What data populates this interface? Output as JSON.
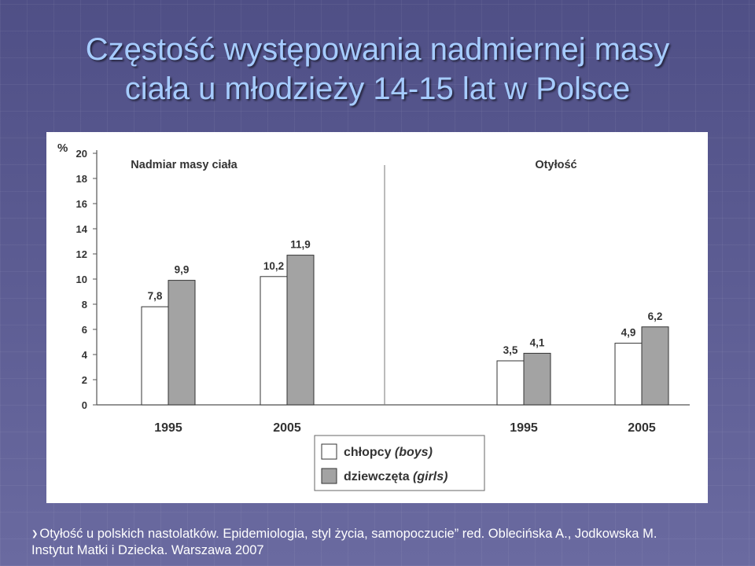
{
  "slide": {
    "title_line1": "Częstość występowania nadmiernej masy",
    "title_line2": "ciała u młodzieży 14-15 lat w Polsce",
    "footer_line1": "Otyłość u polskich nastolatków. Epidemiologia, styl życia, samopoczucie” red. Oblecińska A., Jodkowska M.",
    "footer_line2": "Instytut Matki i Dziecka. Warszawa 2007",
    "bullet_icon": "arrow-bullet-icon"
  },
  "chart_data": {
    "type": "bar",
    "ylabel": "%",
    "ylim": [
      0,
      20
    ],
    "yticks": [
      "0",
      "2",
      "4",
      "6",
      "8",
      "10",
      "12",
      "14",
      "16",
      "18",
      "20"
    ],
    "groups": [
      {
        "title": "Nadmiar masy ciała",
        "categories": [
          "1995",
          "2005"
        ],
        "value_labels": [
          [
            "7,8",
            "9,9"
          ],
          [
            "10,2",
            "11,9"
          ]
        ]
      },
      {
        "title": "Otyłość",
        "categories": [
          "1995",
          "2005"
        ],
        "value_labels": [
          [
            "3,5",
            "4,1"
          ],
          [
            "4,9",
            "6,2"
          ]
        ]
      }
    ],
    "series": [
      {
        "name": "chłopcy",
        "name_en": "(boys)",
        "color": "#ffffff",
        "values": [
          7.8,
          10.2,
          3.5,
          4.9
        ]
      },
      {
        "name": "dziewczęta",
        "name_en": "(girls)",
        "color": "#a3a3a3",
        "values": [
          9.9,
          11.9,
          4.1,
          6.2
        ]
      }
    ],
    "legend_placement": "bottom-center",
    "grid": false
  }
}
